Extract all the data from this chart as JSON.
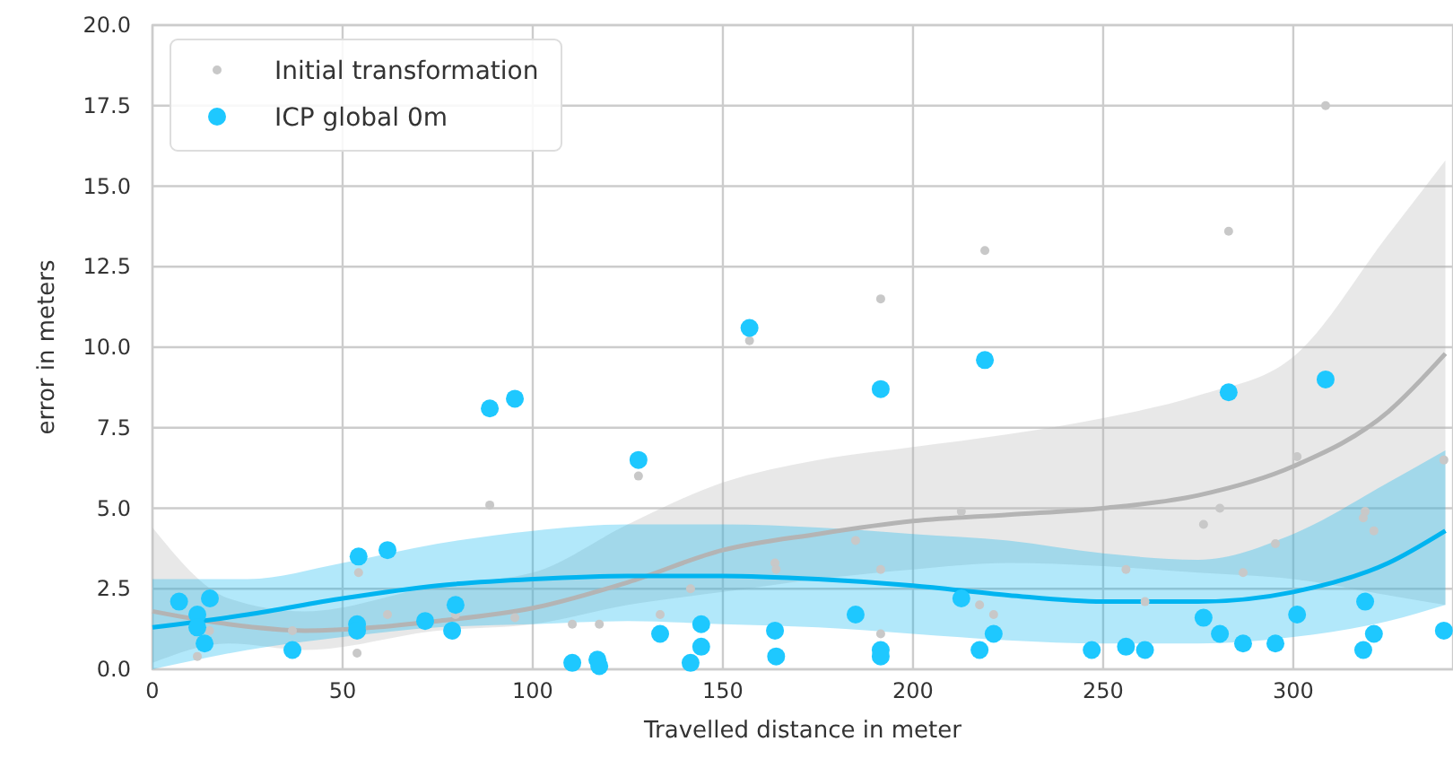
{
  "chart_data": {
    "type": "scatter",
    "xlabel": "Travelled distance in meter",
    "ylabel": "error in meters",
    "xlim": [
      0,
      342
    ],
    "ylim": [
      0,
      20
    ],
    "xticks": [
      0,
      50,
      100,
      150,
      200,
      250,
      300
    ],
    "yticks": [
      {
        "value": 0,
        "label": "0.0"
      },
      {
        "value": 2.5,
        "label": "2.5"
      },
      {
        "value": 5,
        "label": "5.0"
      },
      {
        "value": 7.5,
        "label": "7.5"
      },
      {
        "value": 10,
        "label": "10.0"
      },
      {
        "value": 12.5,
        "label": "12.5"
      },
      {
        "value": 15,
        "label": "15.0"
      },
      {
        "value": 17.5,
        "label": "17.5"
      },
      {
        "value": 20,
        "label": "20.0"
      }
    ],
    "grid": true,
    "legend": "top left",
    "marker": "circle",
    "series": [
      {
        "name": "Initial transformation",
        "color": "#c8c8c8",
        "x": [
          11.8,
          36.8,
          15,
          54.2,
          53.8,
          61.8,
          79.7,
          88.7,
          95.3,
          110.4,
          117.5,
          127.8,
          133.5,
          141.5,
          157,
          163.7,
          164,
          184.9,
          191.5,
          191.5,
          191.5,
          212.7,
          218.9,
          217.5,
          221.2,
          256,
          261,
          276.4,
          280.7,
          283,
          286.8,
          295.3,
          301,
          308.5,
          318.9,
          318.4,
          321.2,
          339.6
        ],
        "values": [
          0.4,
          1.2,
          1.2,
          3.0,
          0.5,
          1.7,
          1.7,
          5.1,
          1.6,
          1.4,
          1.4,
          6.0,
          1.7,
          2.5,
          10.2,
          3.3,
          3.1,
          4.0,
          11.5,
          3.1,
          1.1,
          4.9,
          13.0,
          2.0,
          1.7,
          3.1,
          2.1,
          4.5,
          5.0,
          13.6,
          3.0,
          3.9,
          6.6,
          17.5,
          4.9,
          4.7,
          4.3,
          6.5
        ]
      },
      {
        "name": "ICP global 0m",
        "color": "#1ec8ff",
        "x": [
          7,
          11.8,
          11.8,
          15.1,
          13.7,
          36.8,
          54.2,
          53.8,
          53.8,
          61.8,
          71.7,
          79.7,
          78.8,
          88.7,
          95.3,
          110.4,
          117,
          117.5,
          127.8,
          133.5,
          141.5,
          144.3,
          144.3,
          157,
          163.7,
          164,
          184.9,
          191.5,
          191.5,
          191.5,
          212.7,
          218.9,
          221.2,
          217.5,
          247,
          256,
          261,
          276.4,
          280.7,
          283,
          286.8,
          295.3,
          301,
          308.5,
          318.9,
          321.2,
          318.4,
          339.6
        ],
        "values": [
          2.1,
          1.7,
          1.3,
          2.2,
          0.8,
          0.6,
          3.5,
          1.4,
          1.2,
          3.7,
          1.5,
          2.0,
          1.2,
          8.1,
          8.4,
          0.2,
          0.3,
          0.1,
          6.5,
          1.1,
          0.2,
          1.4,
          0.7,
          10.6,
          1.2,
          0.4,
          1.7,
          8.7,
          0.6,
          0.4,
          2.2,
          9.6,
          1.1,
          0.6,
          0.6,
          0.7,
          0.6,
          1.6,
          1.1,
          8.6,
          0.8,
          0.8,
          1.7,
          9.0,
          2.1,
          1.1,
          0.6,
          1.2
        ]
      },
      {
        "type": "line",
        "marker": "none",
        "color": "#b4b4b4",
        "x": [
          0,
          20,
          40,
          75,
          100,
          125,
          150,
          175,
          200,
          225,
          250,
          275,
          300,
          325,
          340
        ],
        "values": [
          1.8,
          1.4,
          1.2,
          1.5,
          1.9,
          2.7,
          3.7,
          4.2,
          4.6,
          4.8,
          5.0,
          5.4,
          6.3,
          8.0,
          9.8
        ],
        "lower": [
          0.2,
          0.8,
          0.6,
          1.2,
          1.4,
          2.0,
          2.4,
          2.8,
          3.1,
          3.3,
          3.2,
          3.0,
          2.8,
          2.3,
          2.0
        ],
        "upper": [
          4.4,
          2.2,
          1.8,
          2.6,
          3.0,
          4.5,
          5.8,
          6.5,
          6.9,
          7.3,
          7.8,
          8.5,
          9.7,
          13.5,
          15.8
        ]
      },
      {
        "type": "line",
        "marker": "none",
        "color": "#00b4f0",
        "x": [
          0,
          25,
          50,
          75,
          100,
          125,
          150,
          175,
          200,
          225,
          250,
          275,
          300,
          325,
          340
        ],
        "values": [
          1.3,
          1.7,
          2.2,
          2.6,
          2.8,
          2.9,
          2.9,
          2.8,
          2.6,
          2.3,
          2.1,
          2.1,
          2.4,
          3.3,
          4.3
        ],
        "lower": [
          0,
          0.6,
          1.0,
          1.3,
          1.4,
          1.5,
          1.4,
          1.3,
          1.1,
          0.9,
          0.8,
          0.8,
          1.0,
          1.5,
          2.0
        ],
        "upper": [
          2.8,
          2.8,
          3.3,
          3.9,
          4.3,
          4.5,
          4.5,
          4.4,
          4.2,
          4.0,
          3.6,
          3.4,
          4.2,
          5.8,
          6.8
        ]
      }
    ]
  }
}
